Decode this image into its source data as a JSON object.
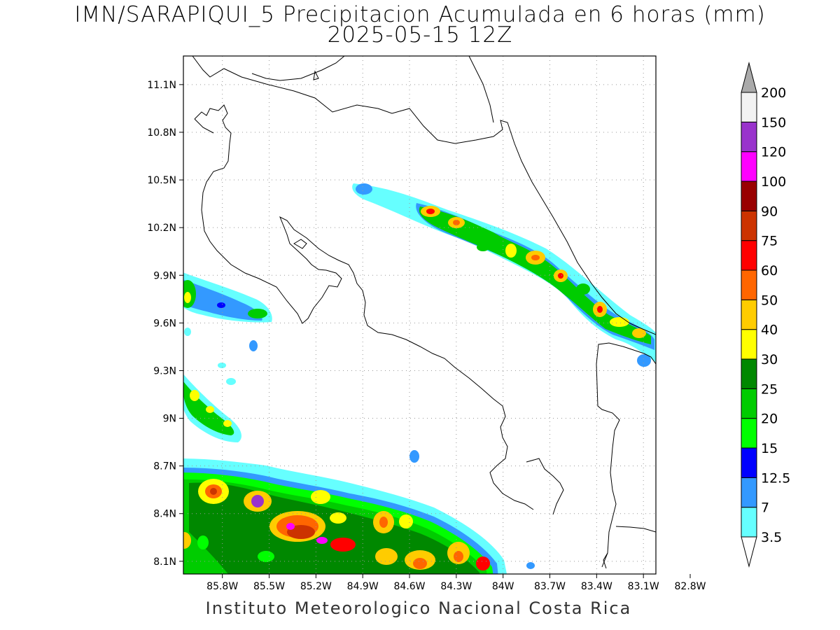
{
  "header": {
    "title": "IMN/SARAPIQUI_5 Precipitacion Acumulada en 6 horas (mm)",
    "subtitle": "2025-05-15 12Z"
  },
  "map": {
    "lat_labels": [
      "11.1N",
      "10.8N",
      "10.5N",
      "10.2N",
      "9.9N",
      "9.6N",
      "9.3N",
      "9N",
      "8.7N",
      "8.4N",
      "8.1N"
    ],
    "lat_values": [
      11.1,
      10.8,
      10.5,
      10.2,
      9.9,
      9.6,
      9.3,
      9.0,
      8.7,
      8.4,
      8.1
    ],
    "lon_labels": [
      "85.8W",
      "85.5W",
      "85.2W",
      "84.9W",
      "84.6W",
      "84.3W",
      "84W",
      "83.7W",
      "83.4W",
      "83.1W",
      "82.8W"
    ],
    "lon_values": [
      -85.8,
      -85.5,
      -85.2,
      -84.9,
      -84.6,
      -84.3,
      -84.0,
      -83.7,
      -83.4,
      -83.1,
      -82.8
    ],
    "lat_range": [
      8.02,
      11.28
    ],
    "lon_range": [
      -86.05,
      -83.02
    ],
    "grid": true
  },
  "colorbar": {
    "labels": [
      "3.5",
      "7",
      "12.5",
      "15",
      "20",
      "25",
      "30",
      "40",
      "50",
      "60",
      "75",
      "90",
      "100",
      "120",
      "150",
      "200"
    ],
    "colors": [
      "#ffffff",
      "#66ffff",
      "#3399ff",
      "#0000ff",
      "#00ff00",
      "#00cc00",
      "#008800",
      "#ffff00",
      "#ffcc00",
      "#ff6600",
      "#ff0000",
      "#cc3300",
      "#990000",
      "#ff00ff",
      "#9933cc",
      "#f2f2f2",
      "#aaaaaa"
    ],
    "units": "mm"
  },
  "footer": {
    "credit": "Instituto Meteorologico Nacional Costa Rica"
  }
}
